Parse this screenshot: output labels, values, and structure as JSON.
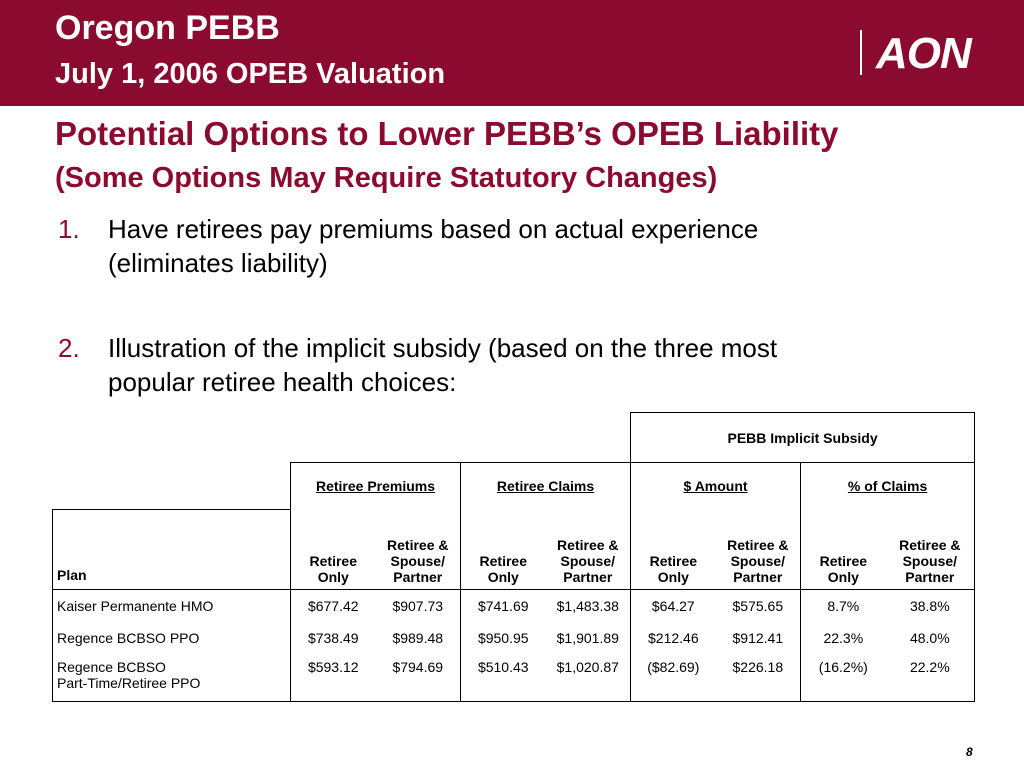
{
  "header": {
    "title": "Oregon PEBB",
    "subtitle": "July 1, 2006 OPEB Valuation",
    "logo_text": "AON",
    "color": "#8b0a2f"
  },
  "slide": {
    "title": "Potential Options to Lower PEBB’s OPEB Liability",
    "subtitle": "(Some Options May Require Statutory Changes)",
    "items": [
      {
        "num": "1.",
        "line1": "Have retirees pay premiums based on actual experience",
        "line2": "(eliminates liability)"
      },
      {
        "num": "2.",
        "line1": "Illustration of the implicit subsidy (based on the three most",
        "line2": "popular retiree health choices:"
      }
    ]
  },
  "table": {
    "super_header": "PEBB Implicit Subsidy",
    "groups": [
      "Retiree Premiums",
      "Retiree Claims",
      "$ Amount",
      "% of Claims"
    ],
    "plan_header": "Plan",
    "sub_a": [
      "Retiree",
      "Only"
    ],
    "sub_b": [
      "Retiree &",
      "Spouse/",
      "Partner"
    ],
    "rows": [
      {
        "plan": [
          "Kaiser Permanente HMO"
        ],
        "values": [
          "$677.42",
          "$907.73",
          "$741.69",
          "$1,483.38",
          "$64.27",
          "$575.65",
          "8.7%",
          "38.8%"
        ]
      },
      {
        "plan": [
          "Regence BCBSO PPO"
        ],
        "values": [
          "$738.49",
          "$989.48",
          "$950.95",
          "$1,901.89",
          "$212.46",
          "$912.41",
          "22.3%",
          "48.0%"
        ]
      },
      {
        "plan": [
          "Regence BCBSO",
          "Part-Time/Retiree PPO"
        ],
        "values": [
          "$593.12",
          "$794.69",
          "$510.43",
          "$1,020.87",
          "($82.69)",
          "$226.18",
          "(16.2%)",
          "22.2%"
        ]
      }
    ]
  },
  "page_number": "8"
}
